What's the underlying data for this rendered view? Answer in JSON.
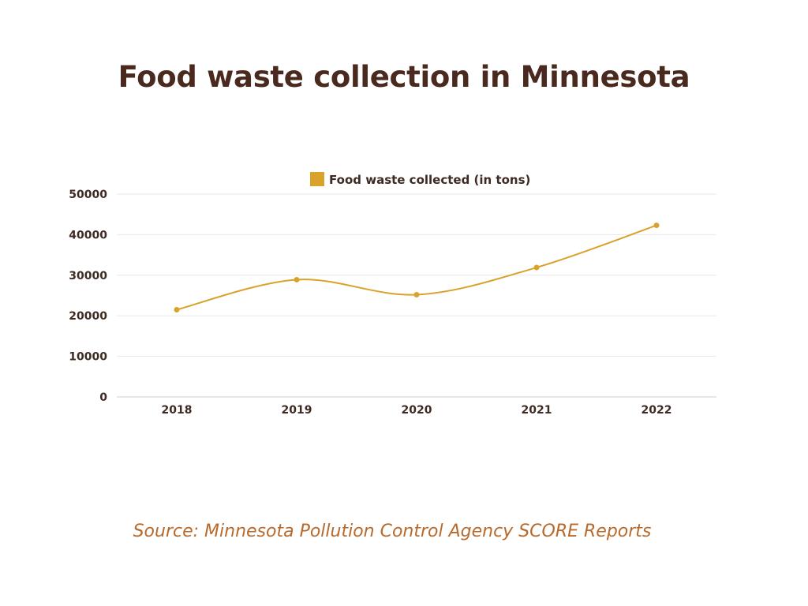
{
  "title": "Food waste collection in Minnesota",
  "source": "Source: Minnesota Pollution Control Agency SCORE Reports",
  "colors": {
    "series": "#d9a22b",
    "title": "#4a2a1f",
    "source": "#b86a2c",
    "grid": "#e8e8e8",
    "axis": "#cccccc"
  },
  "chart_data": {
    "type": "line",
    "title": "Food waste collection in Minnesota",
    "categories": [
      "2018",
      "2019",
      "2020",
      "2021",
      "2022"
    ],
    "series": [
      {
        "name": "Food waste collected (in tons)",
        "values": [
          21500,
          28900,
          25200,
          31900,
          42300
        ]
      }
    ],
    "ylim": [
      0,
      50000
    ],
    "yticks": [
      "0",
      "10000",
      "20000",
      "30000",
      "40000",
      "50000"
    ],
    "xlabel": "",
    "ylabel": "",
    "grid": true,
    "legend_position": "top-center",
    "smooth": true
  }
}
